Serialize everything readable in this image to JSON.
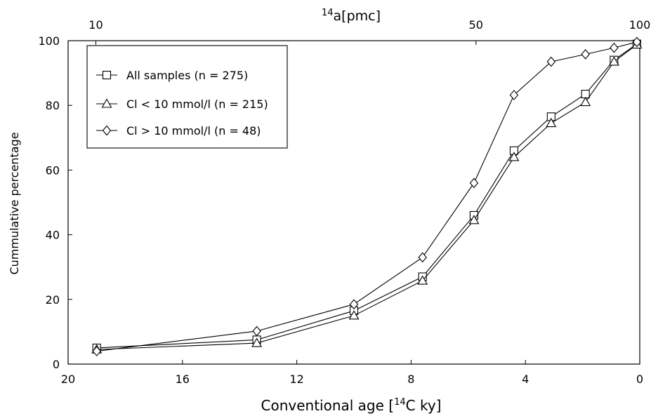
{
  "chart_data": {
    "type": "line",
    "xlabel_pre": "Conventional  age  [",
    "xlabel_sup": "14",
    "xlabel_post": "C ky]",
    "ylabel": "Cummulative  percentage",
    "top_axis_title_sup": "14",
    "top_axis_title": "a[pmc]",
    "top_ticks": [
      {
        "label": "10",
        "age": 19.03
      },
      {
        "label": "50",
        "age": 5.73
      },
      {
        "label": "100",
        "age": 0
      }
    ],
    "xlim": [
      20,
      0
    ],
    "ylim": [
      0,
      100
    ],
    "x_ticks": [
      20,
      16,
      12,
      8,
      4,
      0
    ],
    "y_ticks": [
      0,
      20,
      40,
      60,
      80,
      100
    ],
    "grid": false,
    "legend_position": "top-left",
    "series": [
      {
        "name": "All samples  (n = 275)",
        "marker": "square",
        "x": [
          19.0,
          13.4,
          10.0,
          7.6,
          5.8,
          4.4,
          3.1,
          1.9,
          0.9,
          0.1
        ],
        "y": [
          5.0,
          7.5,
          16.5,
          27.0,
          46.0,
          66.0,
          76.5,
          83.5,
          94.0,
          99.0
        ]
      },
      {
        "name": "Cl  < 10  mmol/l (n = 215)",
        "marker": "triangle",
        "x": [
          19.0,
          13.4,
          10.0,
          7.6,
          5.8,
          4.4,
          3.1,
          1.9,
          0.9,
          0.1
        ],
        "y": [
          4.5,
          6.5,
          15.0,
          25.8,
          44.5,
          64.0,
          74.5,
          81.0,
          93.5,
          98.8
        ]
      },
      {
        "name": "Cl  > 10  mmol/l (n = 48)",
        "marker": "diamond",
        "x": [
          19.0,
          13.4,
          10.0,
          7.6,
          5.8,
          4.4,
          3.1,
          1.9,
          0.9,
          0.1
        ],
        "y": [
          4.0,
          10.2,
          18.5,
          33.0,
          56.0,
          83.2,
          93.5,
          95.8,
          97.8,
          99.6
        ]
      }
    ]
  }
}
